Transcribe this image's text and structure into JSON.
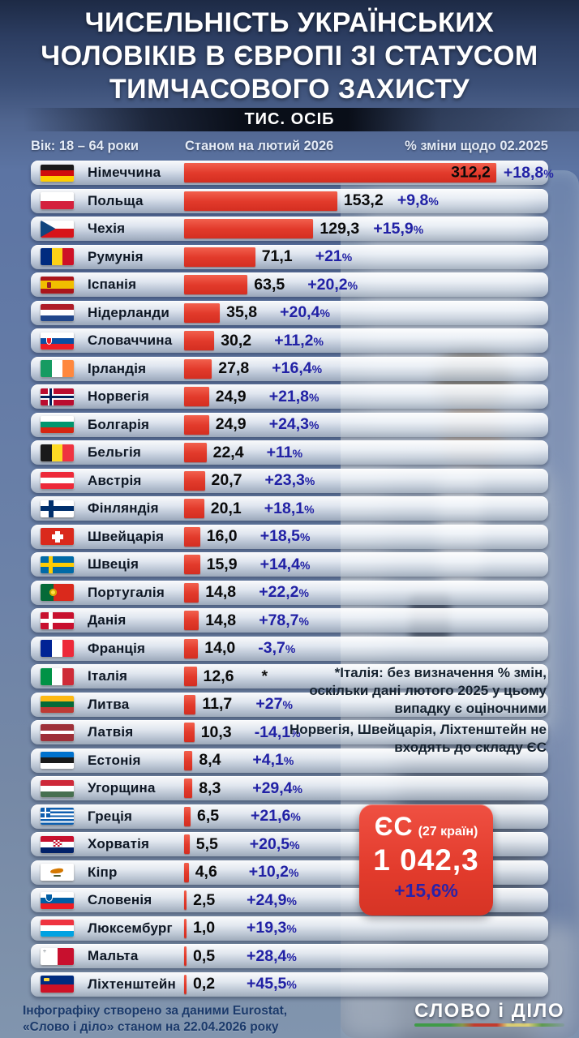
{
  "chart_data": {
    "type": "bar",
    "title": "Чисельність українських чоловіків в Європі зі статусом тимчасового захисту",
    "unit": "тис. осіб",
    "age_range": "Вік: 18 – 64 роки",
    "as_of": "Станом на лютий 2026",
    "change_label": "% зміни щодо 02.2025",
    "categories": [
      "Німеччина",
      "Польща",
      "Чехія",
      "Румунія",
      "Іспанія",
      "Нідерланди",
      "Словаччина",
      "Ірландія",
      "Норвегія",
      "Болгарія",
      "Бельгія",
      "Австрія",
      "Фінляндія",
      "Швейцарія",
      "Швеція",
      "Португалія",
      "Данія",
      "Франція",
      "Італія",
      "Литва",
      "Латвія",
      "Естонія",
      "Угорщина",
      "Греція",
      "Хорватія",
      "Кіпр",
      "Словенія",
      "Люксембург",
      "Мальта",
      "Ліхтенштейн"
    ],
    "values": [
      312.2,
      153.2,
      129.3,
      71.1,
      63.5,
      35.8,
      30.2,
      27.8,
      24.9,
      24.9,
      22.4,
      20.7,
      20.1,
      16.0,
      15.9,
      14.8,
      14.8,
      14.0,
      12.6,
      11.7,
      10.3,
      8.4,
      8.3,
      6.5,
      5.5,
      4.6,
      2.5,
      1.0,
      0.5,
      0.2
    ],
    "pct_change": [
      "+18,8%",
      "+9,8%",
      "+15,9%",
      "+21%",
      "+20,2%",
      "+20,4%",
      "+11,2%",
      "+16,4%",
      "+21,8%",
      "+24,3%",
      "+11%",
      "+23,3%",
      "+18,1%",
      "+18,5%",
      "+14,4%",
      "+22,2%",
      "+78,7%",
      "-3,7%",
      "*",
      "+27%",
      "-14,1%",
      "+4,1%",
      "+29,4%",
      "+21,6%",
      "+20,5%",
      "+10,2%",
      "+24,9%",
      "+19,3%",
      "+28,4%",
      "+45,5%"
    ],
    "eu_total": {
      "label": "ЄС (27 країн)",
      "value": 1042.3,
      "pct_change": "+15,6%"
    },
    "xlim": [
      0,
      320
    ],
    "bar_color": "#e23a2b",
    "pct_color": "#2121a5",
    "legend_position": "none",
    "grid": false
  },
  "header": {
    "title_lines": [
      "ЧИСЕЛЬНІСТЬ УКРАЇНСЬКИХ",
      "ЧОЛОВІКІВ В ЄВРОПІ ЗІ СТАТУСОМ",
      "ТИМЧАСОВОГО ЗАХИСТУ"
    ],
    "unit_badge": "ТИС. ОСІБ",
    "col_age": "Вік: 18 – 64 роки",
    "col_asof": "Станом на лютий 2026",
    "col_change": "% зміни щодо 02.2025"
  },
  "ui": {
    "rows": [
      {
        "id": "germany",
        "country": "Німеччина",
        "value": "312,2",
        "value_num": 312.2,
        "pct": "+18,8",
        "sym": "%",
        "inside": true,
        "flag": {
          "t": "h",
          "c": [
            "#1a1a1a",
            "#d00c0c",
            "#ffce00"
          ]
        }
      },
      {
        "id": "poland",
        "country": "Польща",
        "value": "153,2",
        "value_num": 153.2,
        "pct": "+9,8",
        "sym": "%",
        "flag": {
          "t": "h",
          "c": [
            "#ffffff",
            "#d4213d"
          ]
        }
      },
      {
        "id": "czechia",
        "country": "Чехія",
        "value": "129,3",
        "value_num": 129.3,
        "pct": "+15,9",
        "sym": "%",
        "flag": {
          "t": "czech"
        }
      },
      {
        "id": "romania",
        "country": "Румунія",
        "value": "71,1",
        "value_num": 71.1,
        "pct": "+21",
        "sym": "%",
        "flag": {
          "t": "v",
          "c": [
            "#002b7f",
            "#fcd116",
            "#ce1126"
          ]
        }
      },
      {
        "id": "spain",
        "country": "Іспанія",
        "value": "63,5",
        "value_num": 63.5,
        "pct": "+20,2",
        "sym": "%",
        "flag": {
          "t": "h",
          "c": [
            "#aa151b",
            "#f1bf00",
            "#aa151b"
          ],
          "w": [
            1,
            2,
            1
          ],
          "b": "spain"
        }
      },
      {
        "id": "netherlands",
        "country": "Нідерланди",
        "value": "35,8",
        "value_num": 35.8,
        "pct": "+20,4",
        "sym": "%",
        "flag": {
          "t": "h",
          "c": [
            "#ae1c28",
            "#ffffff",
            "#21468b"
          ]
        }
      },
      {
        "id": "slovakia",
        "country": "Словаччина",
        "value": "30,2",
        "value_num": 30.2,
        "pct": "+11,2",
        "sym": "%",
        "flag": {
          "t": "h",
          "c": [
            "#ffffff",
            "#0b4ea2",
            "#ee1c25"
          ],
          "b": "slovakia"
        }
      },
      {
        "id": "ireland",
        "country": "Ірландія",
        "value": "27,8",
        "value_num": 27.8,
        "pct": "+16,4",
        "sym": "%",
        "flag": {
          "t": "v",
          "c": [
            "#169b62",
            "#ffffff",
            "#ff883e"
          ]
        }
      },
      {
        "id": "norway",
        "country": "Норвегія",
        "value": "24,9",
        "value_num": 24.9,
        "pct": "+21,8",
        "sym": "%",
        "flag": {
          "t": "nordic",
          "f": "#ba0c2f",
          "oc": "#ffffff",
          "ow": 7,
          "ic": "#00205b",
          "iw": 3
        }
      },
      {
        "id": "bulgaria",
        "country": "Болгарія",
        "value": "24,9",
        "value_num": 24.9,
        "pct": "+24,3",
        "sym": "%",
        "flag": {
          "t": "h",
          "c": [
            "#ffffff",
            "#00966e",
            "#d62612"
          ]
        }
      },
      {
        "id": "belgium",
        "country": "Бельгія",
        "value": "22,4",
        "value_num": 22.4,
        "pct": "+11",
        "sym": "%",
        "flag": {
          "t": "v",
          "c": [
            "#1a1a1a",
            "#fdda24",
            "#ef3340"
          ]
        }
      },
      {
        "id": "austria",
        "country": "Австрія",
        "value": "20,7",
        "value_num": 20.7,
        "pct": "+23,3",
        "sym": "%",
        "flag": {
          "t": "h",
          "c": [
            "#ed2939",
            "#ffffff",
            "#ed2939"
          ]
        }
      },
      {
        "id": "finland",
        "country": "Фінляндія",
        "value": "20,1",
        "value_num": 20.1,
        "pct": "+18,1",
        "sym": "%",
        "flag": {
          "t": "nordic",
          "f": "#ffffff",
          "oc": "#002f6c",
          "ow": 6
        }
      },
      {
        "id": "switzerland",
        "country": "Швейцарія",
        "value": "16,0",
        "value_num": 16.0,
        "pct": "+18,5",
        "sym": "%",
        "flag": {
          "t": "cross",
          "f": "#da291c"
        }
      },
      {
        "id": "sweden",
        "country": "Швеція",
        "value": "15,9",
        "value_num": 15.9,
        "pct": "+14,4",
        "sym": "%",
        "flag": {
          "t": "nordic",
          "f": "#006aa7",
          "oc": "#fecc02",
          "ow": 5
        }
      },
      {
        "id": "portugal",
        "country": "Португалія",
        "value": "14,8",
        "value_num": 14.8,
        "pct": "+22,2",
        "sym": "%",
        "flag": {
          "t": "v",
          "c": [
            "#046a38",
            "#da291c"
          ],
          "w": [
            2,
            3
          ],
          "b": "portugal"
        }
      },
      {
        "id": "denmark",
        "country": "Данія",
        "value": "14,8",
        "value_num": 14.8,
        "pct": "+78,7",
        "sym": "%",
        "flag": {
          "t": "nordic",
          "f": "#c8102e",
          "oc": "#ffffff",
          "ow": 5
        }
      },
      {
        "id": "france",
        "country": "Франція",
        "value": "14,0",
        "value_num": 14.0,
        "pct": "-3,7",
        "sym": "%",
        "flag": {
          "t": "v",
          "c": [
            "#002395",
            "#ffffff",
            "#ed2939"
          ]
        }
      },
      {
        "id": "italy",
        "country": "Італія",
        "value": "12,6",
        "value_num": 12.6,
        "pct": "*",
        "sym": "",
        "flag": {
          "t": "v",
          "c": [
            "#009246",
            "#ffffff",
            "#ce2b37"
          ]
        }
      },
      {
        "id": "lithuania",
        "country": "Литва",
        "value": "11,7",
        "value_num": 11.7,
        "pct": "+27",
        "sym": "%",
        "flag": {
          "t": "h",
          "c": [
            "#fdb913",
            "#046a38",
            "#be3a34"
          ]
        }
      },
      {
        "id": "latvia",
        "country": "Латвія",
        "value": "10,3",
        "value_num": 10.3,
        "pct": "-14,1",
        "sym": "%",
        "flag": {
          "t": "h",
          "c": [
            "#9e3039",
            "#ffffff",
            "#9e3039"
          ],
          "w": [
            2,
            1,
            2
          ]
        }
      },
      {
        "id": "estonia",
        "country": "Естонія",
        "value": "8,4",
        "value_num": 8.4,
        "pct": "+4,1",
        "sym": "%",
        "flag": {
          "t": "h",
          "c": [
            "#0072ce",
            "#1a1a1a",
            "#ffffff"
          ]
        }
      },
      {
        "id": "hungary",
        "country": "Угорщина",
        "value": "8,3",
        "value_num": 8.3,
        "pct": "+29,4",
        "sym": "%",
        "flag": {
          "t": "h",
          "c": [
            "#ce2939",
            "#ffffff",
            "#477050"
          ]
        }
      },
      {
        "id": "greece",
        "country": "Греція",
        "value": "6,5",
        "value_num": 6.5,
        "pct": "+21,6",
        "sym": "%",
        "flag": {
          "t": "greece"
        }
      },
      {
        "id": "croatia",
        "country": "Хорватія",
        "value": "5,5",
        "value_num": 5.5,
        "pct": "+20,5",
        "sym": "%",
        "flag": {
          "t": "h",
          "c": [
            "#c8102e",
            "#ffffff",
            "#012169"
          ],
          "b": "croatia"
        }
      },
      {
        "id": "cyprus",
        "country": "Кіпр",
        "value": "4,6",
        "value_num": 4.6,
        "pct": "+10,2",
        "sym": "%",
        "flag": {
          "t": "h",
          "c": [
            "#ffffff",
            "#ffffff"
          ],
          "b": "cyprus"
        }
      },
      {
        "id": "slovenia",
        "country": "Словенія",
        "value": "2,5",
        "value_num": 2.5,
        "pct": "+24,9",
        "sym": "%",
        "flag": {
          "t": "h",
          "c": [
            "#ffffff",
            "#005da4",
            "#ed1c24"
          ],
          "b": "slovenia"
        }
      },
      {
        "id": "luxembourg",
        "country": "Люксембург",
        "value": "1,0",
        "value_num": 1.0,
        "pct": "+19,3",
        "sym": "%",
        "flag": {
          "t": "h",
          "c": [
            "#ef3340",
            "#ffffff",
            "#00a2e1"
          ]
        }
      },
      {
        "id": "malta",
        "country": "Мальта",
        "value": "0,5",
        "value_num": 0.5,
        "pct": "+28,4",
        "sym": "%",
        "flag": {
          "t": "v",
          "c": [
            "#ffffff",
            "#c8102e"
          ],
          "b": "malta"
        }
      },
      {
        "id": "liechtenstein",
        "country": "Ліхтенштейн",
        "value": "0,2",
        "value_num": 0.2,
        "pct": "+45,5",
        "sym": "%",
        "flag": {
          "t": "h",
          "c": [
            "#002b7f",
            "#ce1126"
          ],
          "b": "liechtenstein"
        }
      }
    ]
  },
  "notes": {
    "note1_lines": [
      "*Італія: без визначення % змін,",
      "оскільки дані лютого 2025 у цьому",
      "випадку є оціночними"
    ],
    "note2_lines": [
      "Норвегія, Швейцарія, Ліхтенштейн не",
      "входять до складу ЄС"
    ]
  },
  "eu_badge": {
    "name": "ЄС",
    "countries": "(27 країн)",
    "value": "1 042,3",
    "pct": "+15,6%"
  },
  "footer": {
    "line1": "Інфографіку створено за даними Eurostat,",
    "line2": "«Слово і діло» станом на 22.04.2026 року",
    "logo": "СЛОВО і ДІЛО"
  },
  "colors": {
    "bar_red": "#e23a2b",
    "pct_blue": "#2121a5",
    "badge_red": "#e23b2c",
    "badge_pct_blue": "#2a22a8",
    "background_blue": "#5c74a3"
  }
}
